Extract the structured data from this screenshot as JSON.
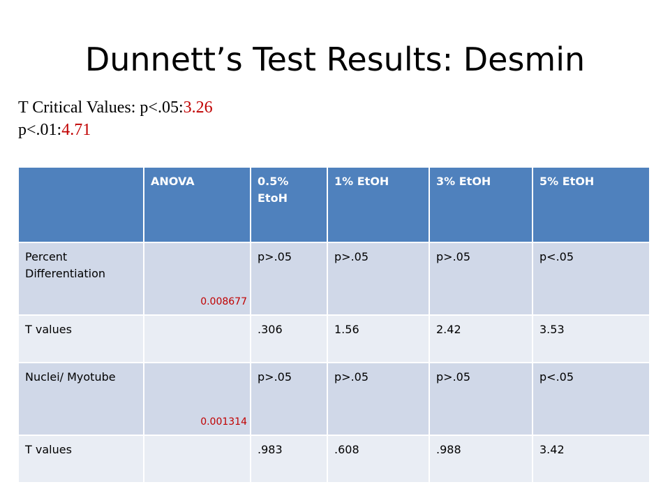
{
  "title": "Dunnett’s Test Results: Desmin",
  "critical": {
    "label_05": "T Critical Values: p<.05:",
    "value_05": "3.26",
    "label_01": "p<.01:",
    "value_01": "4.71"
  },
  "table": {
    "headers": [
      "",
      "ANOVA",
      "0.5% EtoH",
      "1% EtOH",
      "3% EtOH",
      "5% EtOH"
    ],
    "rows": [
      {
        "label": "Percent Differentiation",
        "anova": "0.008677",
        "cells": [
          "p>.05",
          "p>.05",
          "p>.05",
          "p<.05"
        ]
      },
      {
        "label": "T values",
        "anova": "",
        "cells": [
          ".306",
          "1.56",
          "2.42",
          "3.53"
        ]
      },
      {
        "label": "Nuclei/ Myotube",
        "anova": "0.001314",
        "cells": [
          "p>.05",
          "p>.05",
          "p>.05",
          "p<.05"
        ]
      },
      {
        "label": "T values",
        "anova": "",
        "cells": [
          ".983",
          ".608",
          ".988",
          "3.42"
        ]
      }
    ]
  },
  "colors": {
    "header_bg": "#4f81bd",
    "row_dark": "#d0d8e8",
    "row_light": "#e9edf4",
    "significant": "#c00000"
  }
}
